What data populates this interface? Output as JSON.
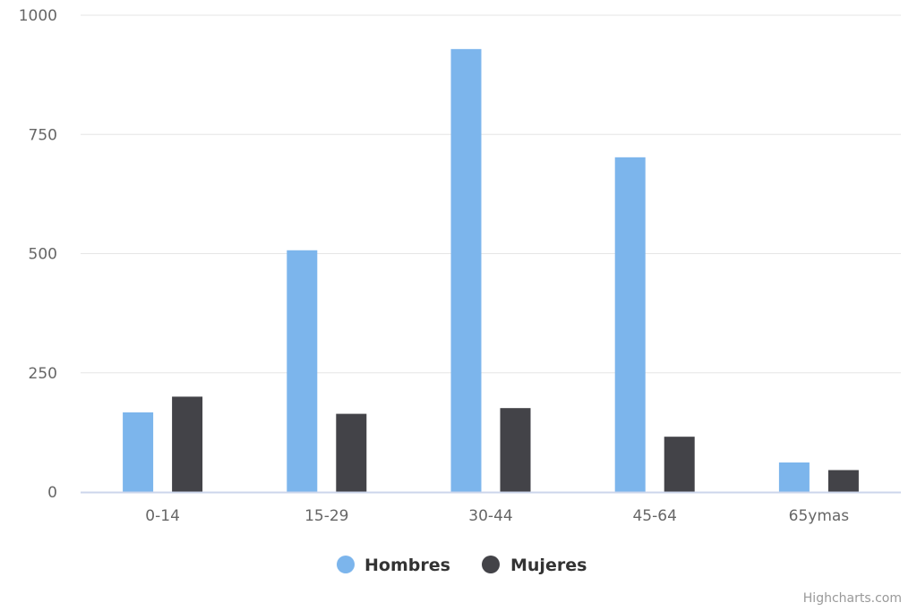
{
  "chart_data": {
    "type": "bar",
    "categories": [
      "0-14",
      "15-29",
      "30-44",
      "45-64",
      "65ymas"
    ],
    "series": [
      {
        "name": "Hombres",
        "color": "#7cb5ec",
        "values": [
          167,
          507,
          929,
          702,
          62
        ]
      },
      {
        "name": "Mujeres",
        "color": "#434348",
        "values": [
          200,
          164,
          176,
          116,
          46
        ]
      }
    ],
    "ylim": [
      0,
      1000
    ],
    "yticks": [
      0,
      250,
      500,
      750,
      1000
    ],
    "grid": true,
    "legend_position": "bottom-center"
  },
  "credits": "Highcharts.com"
}
